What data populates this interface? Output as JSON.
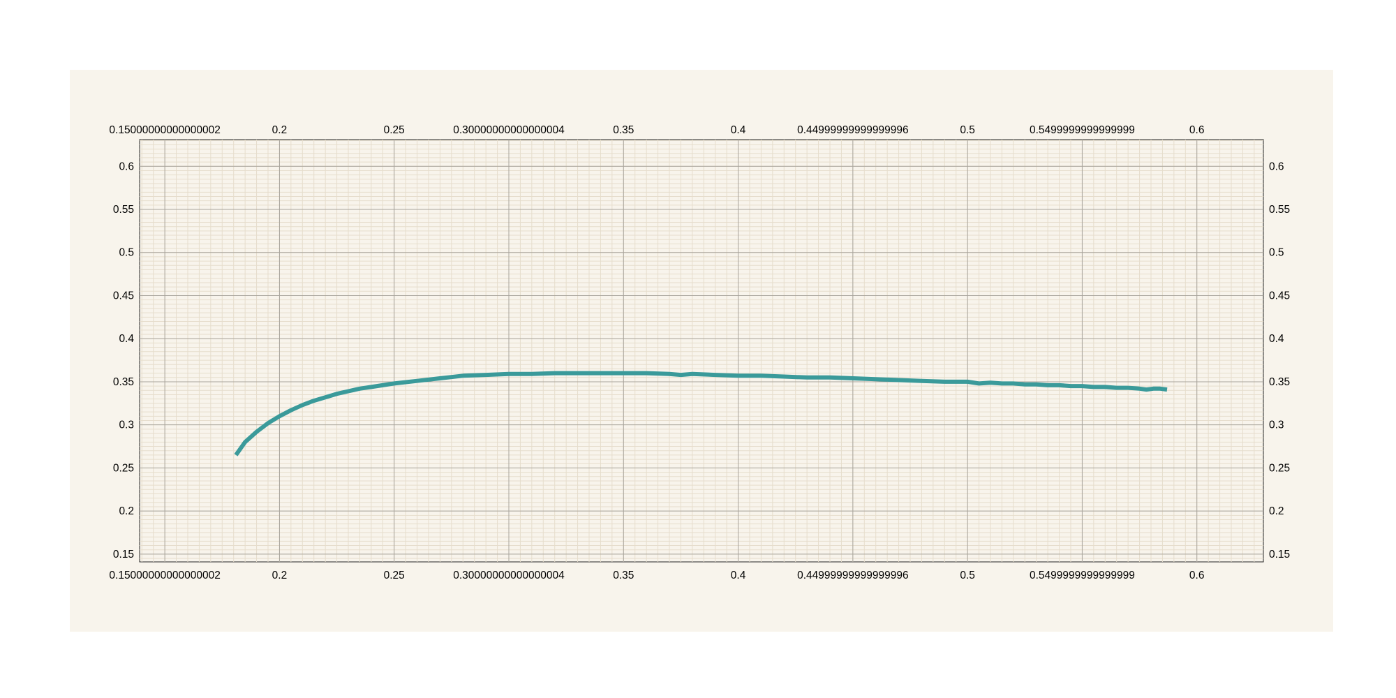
{
  "chart_data": {
    "type": "line",
    "title": "",
    "xlabel": "",
    "ylabel": "",
    "xlim": [
      0.139,
      0.629
    ],
    "ylim": [
      0.141,
      0.631
    ],
    "grid": true,
    "x_ticks": [
      "0.15000000000000002",
      "0.2",
      "0.25",
      "0.30000000000000004",
      "0.35",
      "0.4",
      "0.44999999999999996",
      "0.5",
      "0.5499999999999999",
      "0.6"
    ],
    "x_tick_values": [
      0.15,
      0.2,
      0.25,
      0.3,
      0.35,
      0.4,
      0.45,
      0.5,
      0.55,
      0.6
    ],
    "y_ticks": [
      "0.15",
      "0.2",
      "0.25",
      "0.3",
      "0.35",
      "0.4",
      "0.45",
      "0.5",
      "0.55",
      "0.6"
    ],
    "y_tick_values": [
      0.15,
      0.2,
      0.25,
      0.3,
      0.35,
      0.4,
      0.45,
      0.5,
      0.55,
      0.6
    ],
    "series": [
      {
        "color": "#3a9a9a",
        "x": [
          0.181,
          0.185,
          0.19,
          0.195,
          0.2,
          0.205,
          0.21,
          0.215,
          0.22,
          0.225,
          0.23,
          0.235,
          0.24,
          0.245,
          0.25,
          0.26,
          0.27,
          0.28,
          0.29,
          0.3,
          0.31,
          0.32,
          0.33,
          0.34,
          0.35,
          0.36,
          0.37,
          0.375,
          0.38,
          0.39,
          0.4,
          0.405,
          0.41,
          0.42,
          0.43,
          0.44,
          0.45,
          0.46,
          0.47,
          0.48,
          0.49,
          0.5,
          0.505,
          0.51,
          0.515,
          0.52,
          0.525,
          0.53,
          0.535,
          0.54,
          0.545,
          0.55,
          0.555,
          0.56,
          0.565,
          0.57,
          0.575,
          0.578,
          0.581,
          0.584,
          0.587
        ],
        "y": [
          0.265,
          0.28,
          0.292,
          0.302,
          0.31,
          0.317,
          0.323,
          0.328,
          0.332,
          0.336,
          0.339,
          0.342,
          0.344,
          0.346,
          0.348,
          0.351,
          0.354,
          0.357,
          0.358,
          0.359,
          0.359,
          0.36,
          0.36,
          0.36,
          0.36,
          0.36,
          0.359,
          0.358,
          0.359,
          0.358,
          0.357,
          0.357,
          0.357,
          0.356,
          0.355,
          0.355,
          0.354,
          0.353,
          0.352,
          0.351,
          0.35,
          0.35,
          0.348,
          0.349,
          0.348,
          0.348,
          0.347,
          0.347,
          0.346,
          0.346,
          0.345,
          0.345,
          0.344,
          0.344,
          0.343,
          0.343,
          0.342,
          0.341,
          0.342,
          0.342,
          0.341
        ]
      }
    ]
  }
}
